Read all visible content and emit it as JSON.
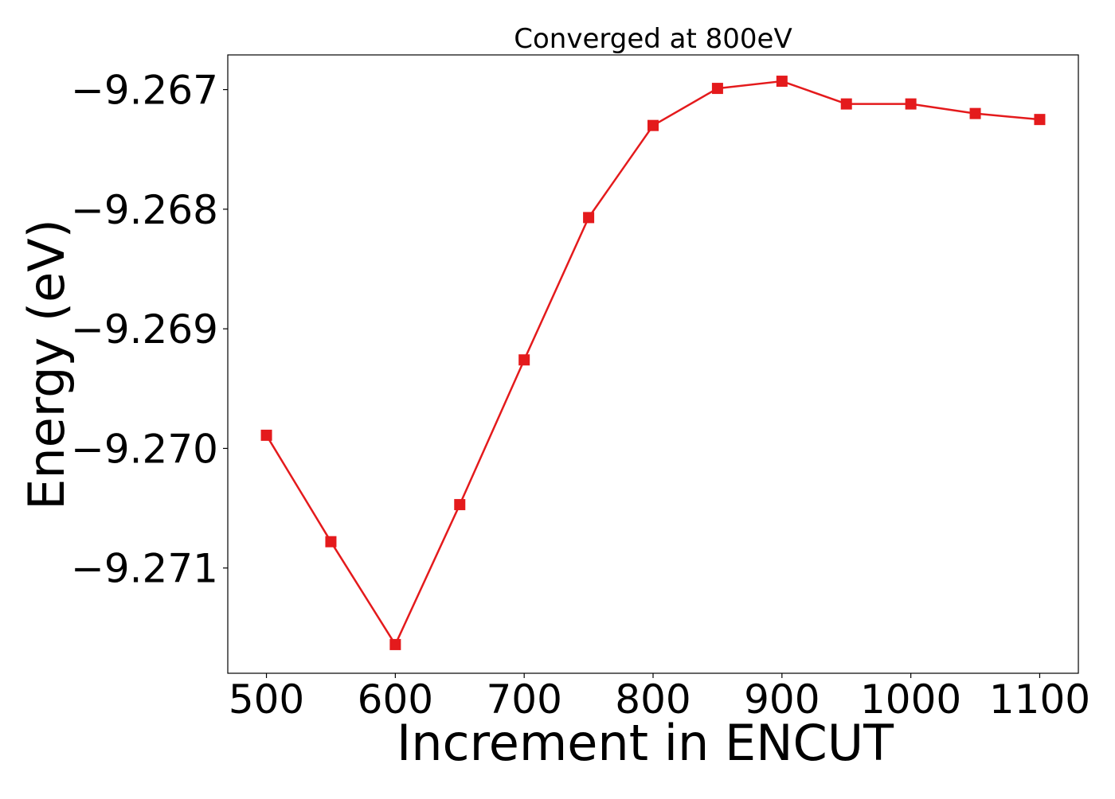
{
  "chart_data": {
    "type": "line",
    "title": "Converged at 800eV",
    "xlabel": "Increment in ENCUT",
    "ylabel": "Energy (eV)",
    "xlim": [
      470,
      1130
    ],
    "ylim": [
      -9.27188,
      -9.26671
    ],
    "x_ticks": [
      500,
      600,
      700,
      800,
      900,
      1000,
      1100
    ],
    "x_tick_labels": [
      "500",
      "600",
      "700",
      "800",
      "900",
      "1000",
      "1100"
    ],
    "y_ticks": [
      -9.267,
      -9.268,
      -9.269,
      -9.27,
      -9.271
    ],
    "y_tick_labels": [
      "−9.267",
      "−9.268",
      "−9.269",
      "−9.270",
      "−9.271"
    ],
    "grid": false,
    "series": [
      {
        "color": "#e41a1c",
        "marker": "square",
        "x": [
          500,
          550,
          600,
          650,
          700,
          750,
          800,
          850,
          900,
          950,
          1000,
          1050,
          1100
        ],
        "y": [
          -9.26989,
          -9.27078,
          -9.27164,
          -9.27047,
          -9.26926,
          -9.26807,
          -9.2673,
          -9.26699,
          -9.26693,
          -9.26712,
          -9.26712,
          -9.2672,
          -9.26725
        ]
      }
    ]
  }
}
